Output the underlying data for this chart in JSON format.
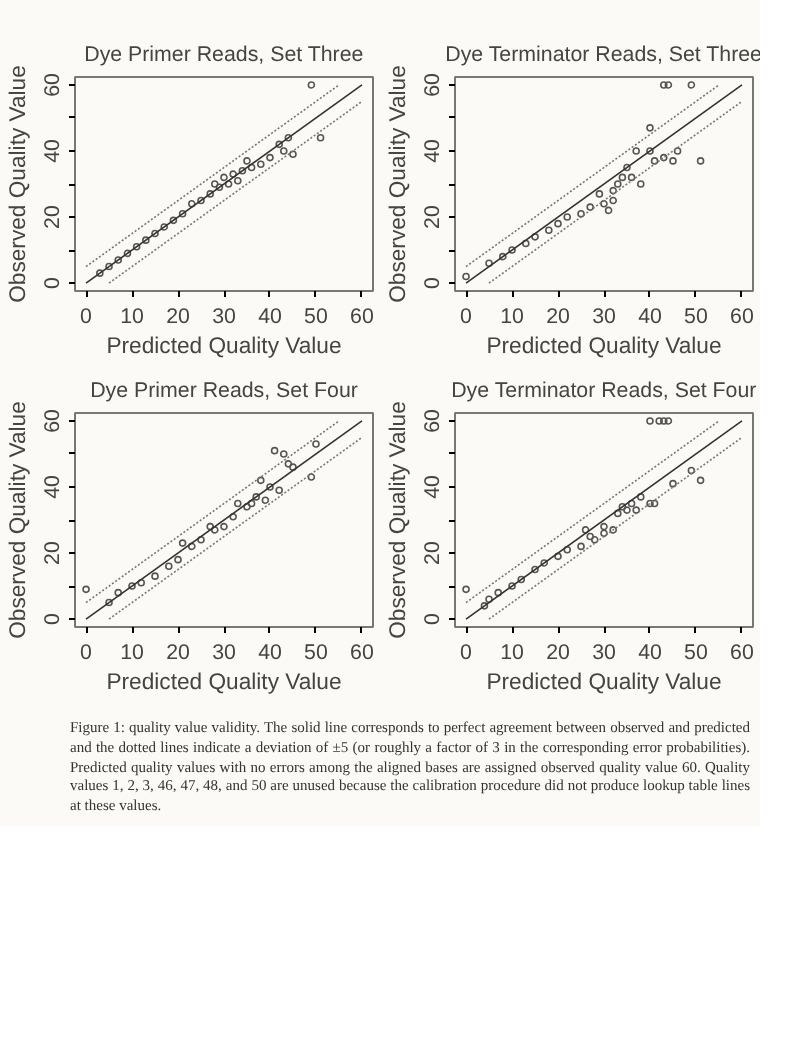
{
  "chart_data": [
    {
      "type": "scatter",
      "title": "Dye Primer Reads, Set Three",
      "xlabel": "Predicted Quality Value",
      "ylabel": "Observed Quality Value",
      "xlim": [
        -2.4,
        62.4
      ],
      "ylim": [
        -2.4,
        62.4
      ],
      "xticks": [
        0,
        10,
        20,
        30,
        40,
        50,
        60
      ],
      "yticks": [
        0,
        {
          "value": 10,
          "label": null
        },
        20,
        {
          "value": 30,
          "label": null
        },
        40,
        {
          "value": 50,
          "label": null
        },
        60
      ],
      "grid": false,
      "marker": "circle",
      "series": [
        {
          "color": "#555555",
          "x": [
            3,
            5,
            7,
            9,
            11,
            13,
            15,
            17,
            19,
            21,
            23,
            25,
            27,
            28,
            29,
            30,
            31,
            32,
            33,
            34,
            35,
            36,
            38,
            40,
            42,
            43,
            44,
            45,
            49,
            51
          ],
          "values": [
            3,
            5,
            7,
            9,
            11,
            13,
            15,
            17,
            19,
            21,
            24,
            25,
            27,
            30,
            29,
            32,
            30,
            33,
            31,
            34,
            37,
            35,
            36,
            38,
            42,
            40,
            44,
            39,
            60,
            44
          ]
        },
        {
          "type": "line",
          "marker": "none",
          "color": "#333333",
          "line_style": "solid",
          "x": [
            0,
            60
          ],
          "values": [
            0,
            60
          ]
        },
        {
          "type": "line",
          "marker": "none",
          "color": "#777777",
          "line_style": "dotted",
          "x": [
            0,
            55
          ],
          "values": [
            5,
            60
          ]
        },
        {
          "type": "line",
          "marker": "none",
          "color": "#777777",
          "line_style": "dotted",
          "x": [
            5,
            60
          ],
          "values": [
            0,
            55
          ]
        }
      ]
    },
    {
      "type": "scatter",
      "title": "Dye Terminator Reads, Set Three",
      "xlabel": "Predicted Quality Value",
      "ylabel": "Observed Quality Value",
      "xlim": [
        -2.4,
        62.4
      ],
      "ylim": [
        -2.4,
        62.4
      ],
      "xticks": [
        0,
        10,
        20,
        30,
        40,
        50,
        60
      ],
      "yticks": [
        0,
        {
          "value": 10,
          "label": null
        },
        20,
        {
          "value": 30,
          "label": null
        },
        40,
        {
          "value": 50,
          "label": null
        },
        60
      ],
      "grid": false,
      "marker": "circle",
      "series": [
        {
          "color": "#555555",
          "x": [
            0,
            5,
            8,
            10,
            13,
            15,
            18,
            20,
            22,
            25,
            27,
            29,
            30,
            31,
            32,
            32,
            33,
            34,
            35,
            36,
            37,
            38,
            40,
            40,
            41,
            43,
            43,
            44,
            45,
            46,
            49,
            51
          ],
          "values": [
            2,
            6,
            8,
            10,
            12,
            14,
            16,
            18,
            20,
            21,
            23,
            27,
            24,
            22,
            25,
            28,
            30,
            32,
            35,
            32,
            40,
            30,
            40,
            47,
            37,
            38,
            60,
            60,
            37,
            40,
            60,
            37
          ]
        },
        {
          "type": "line",
          "marker": "none",
          "color": "#333333",
          "line_style": "solid",
          "x": [
            0,
            60
          ],
          "values": [
            0,
            60
          ]
        },
        {
          "type": "line",
          "marker": "none",
          "color": "#777777",
          "line_style": "dotted",
          "x": [
            0,
            55
          ],
          "values": [
            5,
            60
          ]
        },
        {
          "type": "line",
          "marker": "none",
          "color": "#777777",
          "line_style": "dotted",
          "x": [
            5,
            60
          ],
          "values": [
            0,
            55
          ]
        }
      ]
    },
    {
      "type": "scatter",
      "title": "Dye Primer Reads, Set Four",
      "xlabel": "Predicted Quality Value",
      "ylabel": "Observed Quality Value",
      "xlim": [
        -2.4,
        62.4
      ],
      "ylim": [
        -2.4,
        62.4
      ],
      "xticks": [
        0,
        10,
        20,
        30,
        40,
        50,
        60
      ],
      "yticks": [
        0,
        {
          "value": 10,
          "label": null
        },
        20,
        {
          "value": 30,
          "label": null
        },
        40,
        {
          "value": 50,
          "label": null
        },
        60
      ],
      "grid": false,
      "marker": "circle",
      "series": [
        {
          "color": "#555555",
          "x": [
            0,
            5,
            7,
            10,
            12,
            15,
            18,
            20,
            21,
            23,
            25,
            27,
            28,
            30,
            32,
            33,
            35,
            36,
            37,
            38,
            39,
            40,
            41,
            42,
            43,
            44,
            45,
            49,
            50
          ],
          "values": [
            9,
            5,
            8,
            10,
            11,
            13,
            16,
            18,
            23,
            22,
            24,
            28,
            27,
            28,
            31,
            35,
            34,
            35,
            37,
            42,
            36,
            40,
            51,
            39,
            50,
            47,
            46,
            43,
            53
          ]
        },
        {
          "type": "line",
          "marker": "none",
          "color": "#333333",
          "line_style": "solid",
          "x": [
            0,
            60
          ],
          "values": [
            0,
            60
          ]
        },
        {
          "type": "line",
          "marker": "none",
          "color": "#777777",
          "line_style": "dotted",
          "x": [
            0,
            55
          ],
          "values": [
            5,
            60
          ]
        },
        {
          "type": "line",
          "marker": "none",
          "color": "#777777",
          "line_style": "dotted",
          "x": [
            5,
            60
          ],
          "values": [
            0,
            55
          ]
        }
      ]
    },
    {
      "type": "scatter",
      "title": "Dye Terminator Reads, Set Four",
      "xlabel": "Predicted Quality Value",
      "ylabel": "Observed Quality Value",
      "xlim": [
        -2.4,
        62.4
      ],
      "ylim": [
        -2.4,
        62.4
      ],
      "xticks": [
        0,
        10,
        20,
        30,
        40,
        50,
        60
      ],
      "yticks": [
        0,
        {
          "value": 10,
          "label": null
        },
        20,
        {
          "value": 30,
          "label": null
        },
        40,
        {
          "value": 50,
          "label": null
        },
        60
      ],
      "grid": false,
      "marker": "circle",
      "annotations": [
        "Figure 1: quality value validity. The solid line corresponds to perfect agreement between observed and predicted and the dotted lines indicate a deviation of ±5 (or roughly a factor of 3 in the corresponding error probabilities). Predicted quality values with no errors among the aligned bases are assigned observed quality value 60. Quality values 1, 2, 3, 46, 47, 48, and 50 are unused because the calibration procedure did not produce lookup table lines at these values."
      ],
      "series": [
        {
          "color": "#555555",
          "x": [
            0,
            4,
            5,
            7,
            10,
            12,
            15,
            17,
            20,
            22,
            25,
            26,
            27,
            28,
            30,
            30,
            32,
            33,
            34,
            35,
            36,
            37,
            38,
            40,
            40,
            41,
            42,
            43,
            44,
            45,
            49,
            51
          ],
          "values": [
            9,
            4,
            6,
            8,
            10,
            12,
            15,
            17,
            19,
            21,
            22,
            27,
            25,
            24,
            26,
            28,
            27,
            32,
            34,
            33,
            35,
            33,
            37,
            35,
            60,
            35,
            60,
            60,
            60,
            41,
            45,
            42
          ]
        },
        {
          "type": "line",
          "marker": "none",
          "color": "#333333",
          "line_style": "solid",
          "x": [
            0,
            60
          ],
          "values": [
            0,
            60
          ]
        },
        {
          "type": "line",
          "marker": "none",
          "color": "#777777",
          "line_style": "dotted",
          "x": [
            0,
            55
          ],
          "values": [
            5,
            60
          ]
        },
        {
          "type": "line",
          "marker": "none",
          "color": "#777777",
          "line_style": "dotted",
          "x": [
            5,
            60
          ],
          "values": [
            0,
            55
          ]
        }
      ]
    }
  ]
}
